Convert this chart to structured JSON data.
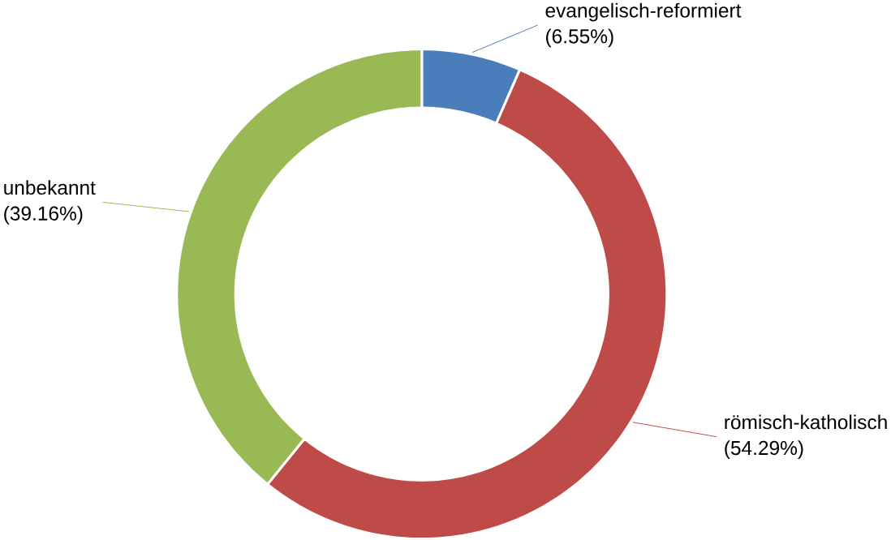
{
  "chart_data": {
    "type": "donut",
    "categories": [
      "evangelisch-reformiert",
      "römisch-katholisch",
      "unbekannt"
    ],
    "values": [
      6.55,
      54.29,
      39.16
    ],
    "colors": [
      "#4a7ebb",
      "#be4b48",
      "#98b954"
    ],
    "value_labels": [
      "(6.55%)",
      "(54.29%)",
      "(39.16%)"
    ]
  }
}
